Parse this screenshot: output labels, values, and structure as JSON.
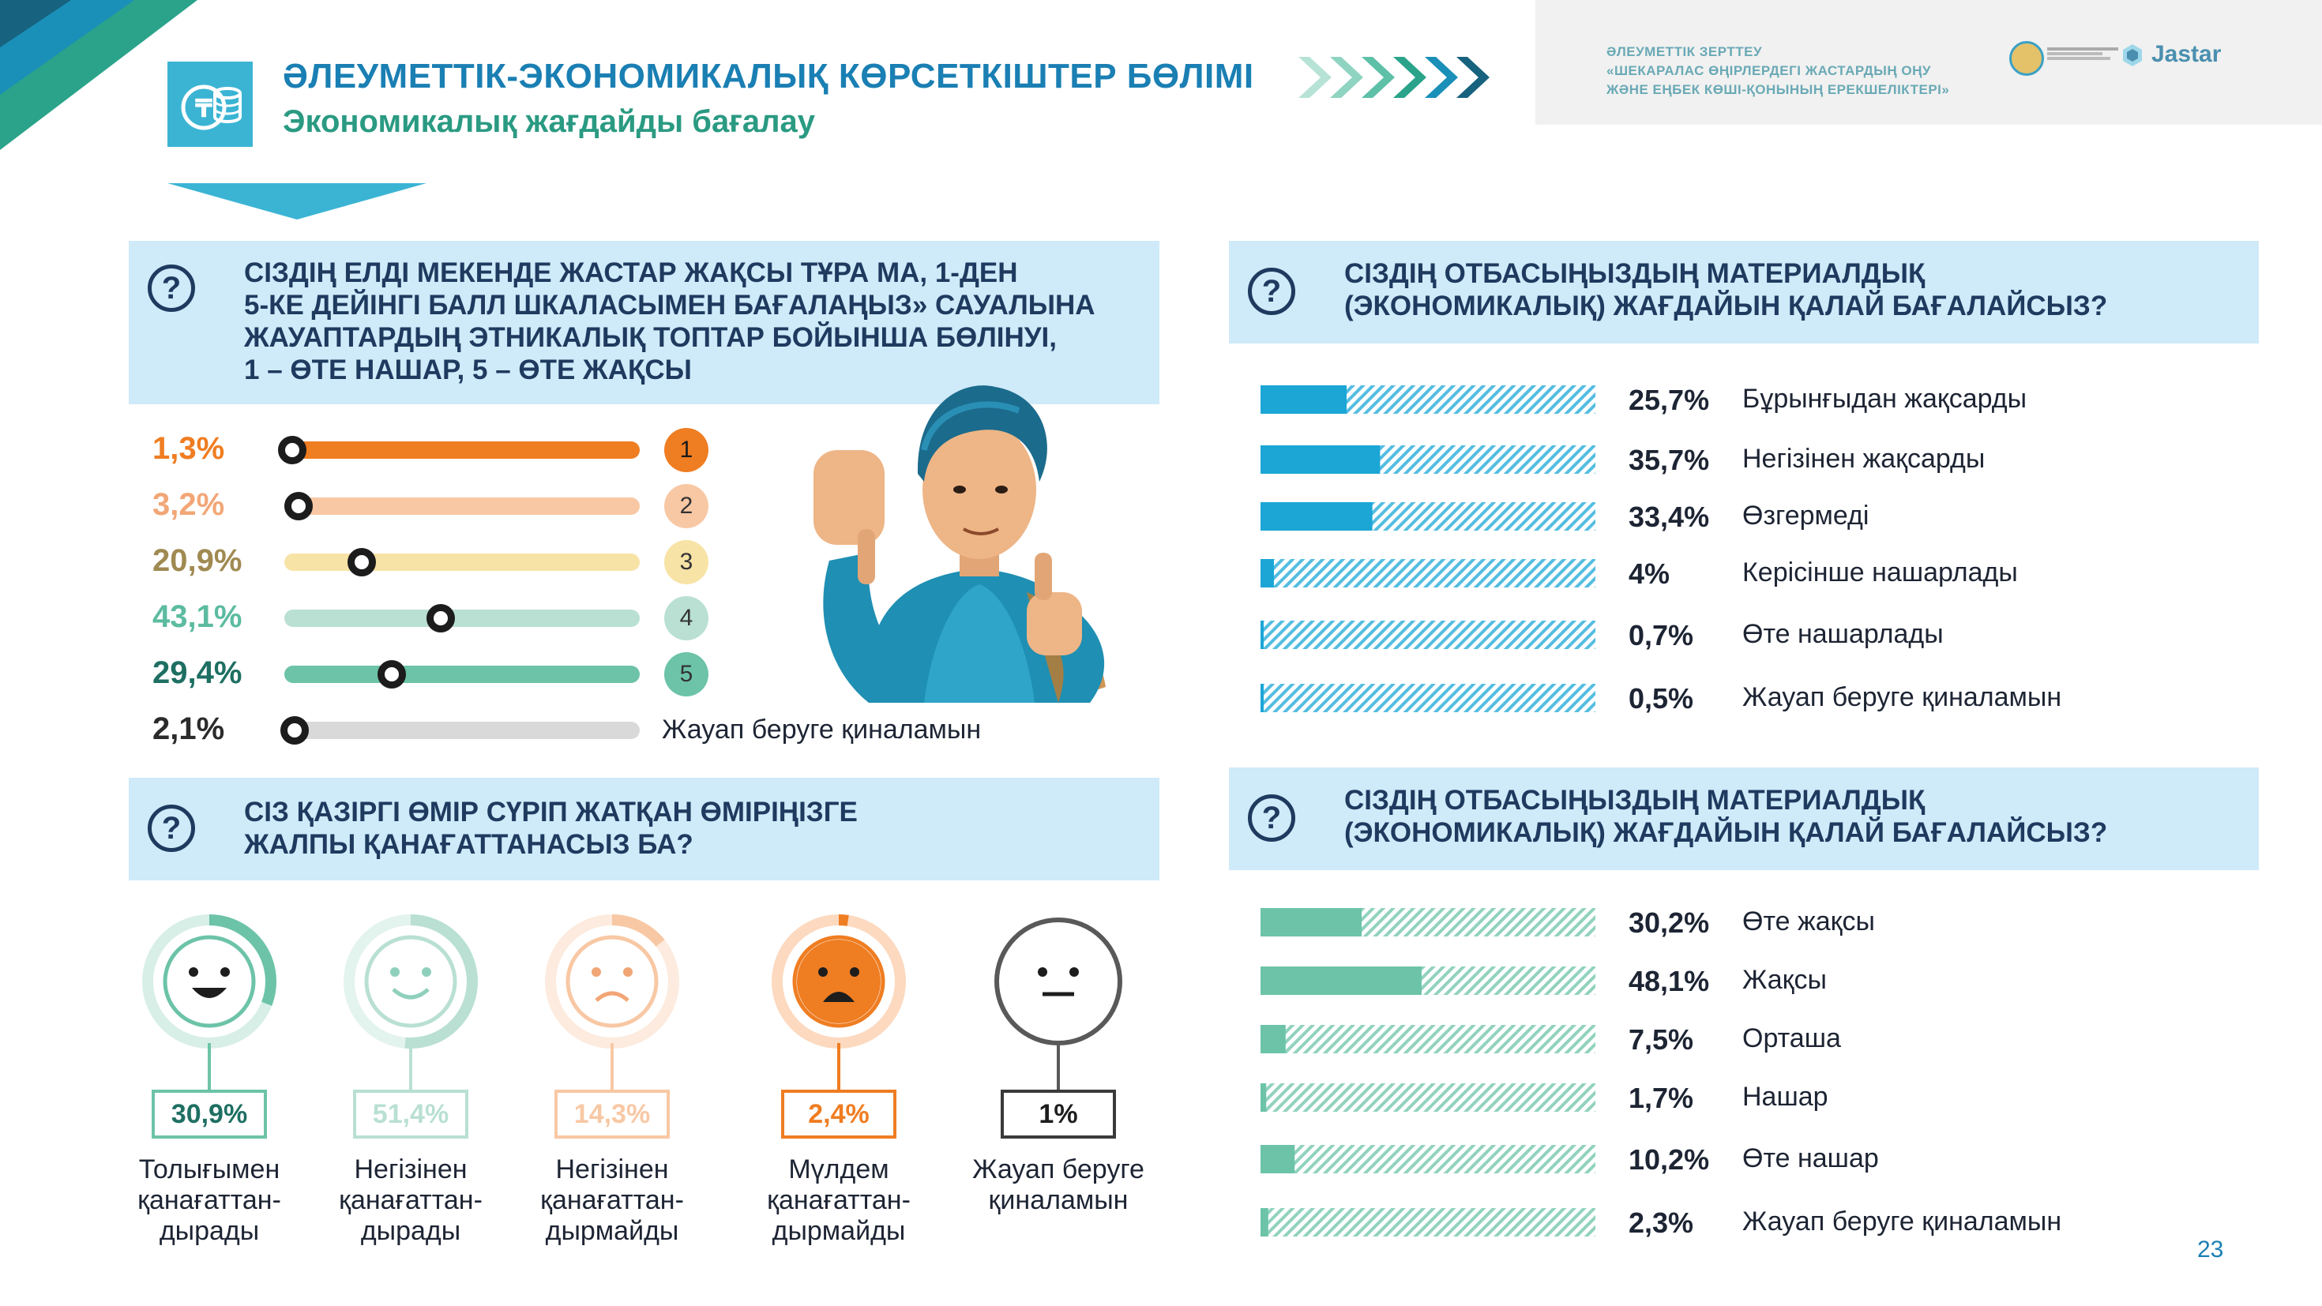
{
  "header": {
    "title": "ӘЛЕУМЕТТІК-ЭКОНОМИКАЛЫҚ КӨРСЕТКІШТЕР БӨЛІМІ",
    "subtitle": "Экономикалық жағдайды бағалау",
    "study_label": "ӘЛЕУМЕТТІК ЗЕРТТЕУ",
    "study_line1": "«ШЕКАРАЛАС ӨҢІРЛЕРДЕГІ ЖАСТАРДЫҢ ОҢУ",
    "study_line2": "ЖӘНЕ ЕҢБЕК КӨШІ-ҚОНЫНЫҢ ЕРЕКШЕЛІКТЕРІ»",
    "logo_text": "Jastar"
  },
  "colors": {
    "teal": "#6cc3a8",
    "blue": "#1ba6d6",
    "orange": "#ef7d22",
    "panel": "#cfeaf9",
    "navy": "#1f3a5f"
  },
  "page_number": "23",
  "chart_data": [
    {
      "type": "bar",
      "title": "СІЗДІҢ ЕЛДІ МЕКЕНДЕ ЖАСТАР ЖАҚСЫ ТҰРА МА, 1-ДЕН 5-КЕ ДЕЙІНГІ  БАЛЛ ШКАЛАСЫМЕН БАҒАЛАҢЫЗ» САУАЛЫНА ЖАУАПТАРДЫҢ ЭТНИКАЛЫҚ ТОПТАР БОЙЫНША БӨЛІНУІ, 1 – ӨТЕ НАШАР, 5 – ӨТЕ ЖАҚСЫ",
      "title_lines": [
        "СІЗДІҢ ЕЛДІ МЕКЕНДЕ ЖАСТАР ЖАҚСЫ ТҰРА МА, 1-ДЕН",
        "5-КЕ ДЕЙІНГІ  БАЛЛ ШКАЛАСЫМЕН БАҒАЛАҢЫЗ» САУАЛЫНА",
        "ЖАУАПТАРДЫҢ ЭТНИКАЛЫҚ ТОПТАР БОЙЫНША БӨЛІНУІ,",
        "1 – ӨТЕ НАШАР, 5 – ӨТЕ ЖАҚСЫ"
      ],
      "categories": [
        "1",
        "2",
        "3",
        "4",
        "5",
        "Жауап беруге қиналамын"
      ],
      "values": [
        1.3,
        3.2,
        20.9,
        43.1,
        29.4,
        2.1
      ],
      "labels": [
        "1,3%",
        "3,2%",
        "20,9%",
        "43,1%",
        "29,4%",
        "2,1%"
      ],
      "colors": [
        "#ef7d22",
        "#f8c8a4",
        "#f8e3a6",
        "#b9e0d2",
        "#6cc3a8",
        "#d9d9d9"
      ],
      "label_colors": [
        "#ef7d22",
        "#f2a676",
        "#a08a52",
        "#5cbba0",
        "#1e6f62",
        "#2b2b2b"
      ]
    },
    {
      "type": "bar",
      "title": "СІЗДІҢ ОТБАСЫҢЫЗДЫҢ МАТЕРИАЛДЫҚ (ЭКОНОМИКАЛЫҚ) ЖАҒДАЙЫН ҚАЛАЙ БАҒАЛАЙСЫЗ?",
      "title_lines": [
        "СІЗДІҢ ОТБАСЫҢЫЗДЫҢ МАТЕРИАЛДЫҚ",
        "(ЭКОНОМИКАЛЫҚ) ЖАҒДАЙЫН ҚАЛАЙ БАҒАЛАЙСЫЗ?"
      ],
      "categories": [
        "Бұрынғыдан жақсарды",
        "Негізінен жақсарды",
        "Өзгермеді",
        "Керісінше нашарлады",
        "Өте нашарлады",
        "Жауап беруге қиналамын"
      ],
      "values": [
        25.7,
        35.7,
        33.4,
        4,
        0.7,
        0.5
      ],
      "labels": [
        "25,7%",
        "35,7%",
        "33,4%",
        "4%",
        "0,7%",
        "0,5%"
      ],
      "ylim": [
        0,
        100
      ],
      "color": "#1ba6d6"
    },
    {
      "type": "pie",
      "title": "СІЗ ҚАЗІРГІ ӨМІР СҮРІП ЖАТҚАН ӨМІРІҢІЗГЕ ЖАЛПЫ ҚАНАҒАТТАНАСЫЗ БА?",
      "title_lines": [
        "СІЗ ҚАЗІРГІ ӨМІР СҮРІП ЖАТҚАН ӨМІРІҢІЗГЕ",
        "ЖАЛПЫ ҚАНАҒАТТАНАСЫЗ БА?"
      ],
      "categories": [
        [
          "Толығымен",
          "қанағаттан-",
          "дырады"
        ],
        [
          "Негізінен",
          "қанағаттан-",
          "дырады"
        ],
        [
          "Негізінен",
          "қанағаттан-",
          "дырмайды"
        ],
        [
          "Мүлдем",
          "қанағаттан-",
          "дырмайды"
        ],
        [
          "Жауап беруге",
          "қиналамын"
        ]
      ],
      "values": [
        30.9,
        51.4,
        14.3,
        2.4,
        1
      ],
      "labels": [
        "30,9%",
        "51,4%",
        "14,3%",
        "2,4%",
        "1%"
      ],
      "moods": [
        "very-happy",
        "happy",
        "sad",
        "very-sad",
        "neutral"
      ],
      "colors": [
        "#6cc3a8",
        "#b9e0d2",
        "#f8c8a4",
        "#ef7d22",
        "#595959"
      ],
      "light_colors": [
        "#d8efe7",
        "#e3f3ed",
        "#fcebde",
        "#fcd9bf",
        "#e6e6e6"
      ]
    },
    {
      "type": "bar",
      "title": "СІЗДІҢ ОТБАСЫҢЫЗДЫҢ МАТЕРИАЛДЫҚ (ЭКОНОМИКАЛЫҚ) ЖАҒДАЙЫН ҚАЛАЙ БАҒАЛАЙСЫЗ?",
      "title_lines": [
        "СІЗДІҢ ОТБАСЫҢЫЗДЫҢ МАТЕРИАЛДЫҚ",
        "(ЭКОНОМИКАЛЫҚ) ЖАҒДАЙЫН ҚАЛАЙ БАҒАЛАЙСЫЗ?"
      ],
      "categories": [
        "Өте жақсы",
        "Жақсы",
        "Орташа",
        "Нашар",
        "Өте нашар",
        "Жауап беруге қиналамын"
      ],
      "values": [
        30.2,
        48.1,
        7.5,
        1.7,
        10.2,
        2.3
      ],
      "labels": [
        "30,2%",
        "48,1%",
        "7,5%",
        "1,7%",
        "10,2%",
        "2,3%"
      ],
      "ylim": [
        0,
        100
      ],
      "color": "#6cc3a8"
    }
  ]
}
